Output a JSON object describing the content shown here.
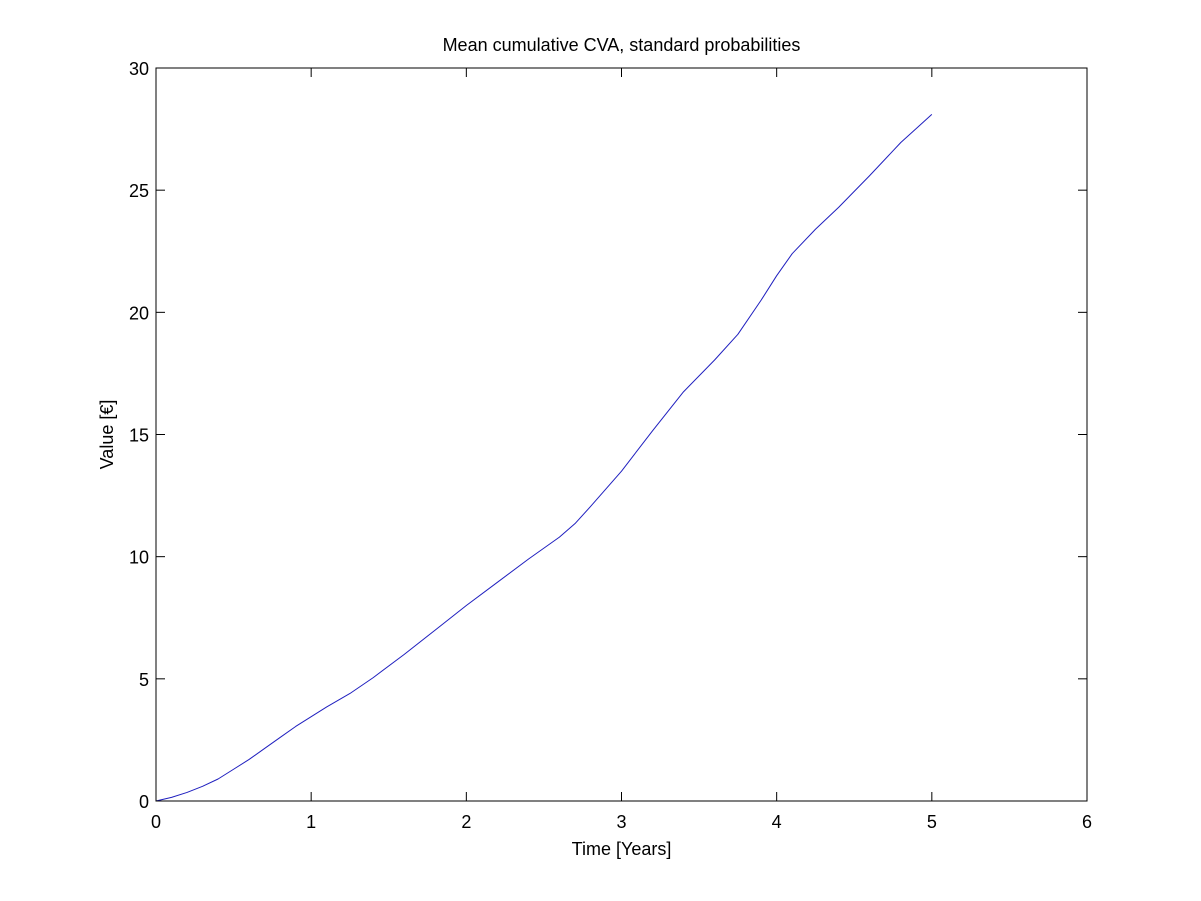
{
  "chart_data": {
    "type": "line",
    "title": "Mean cumulative CVA, standard probabilities",
    "xlabel": "Time [Years]",
    "ylabel": "Value [€]",
    "xlim": [
      0,
      6
    ],
    "ylim": [
      0,
      30
    ],
    "xticks": [
      0,
      1,
      2,
      3,
      4,
      5,
      6
    ],
    "yticks": [
      0,
      5,
      10,
      15,
      20,
      25,
      30
    ],
    "grid": false,
    "legend": "none",
    "colors": {
      "series": "#1f1fbf",
      "axes": "#000000",
      "background": "#ffffff"
    },
    "series": [
      {
        "x": [
          0,
          0.1,
          0.2,
          0.3,
          0.4,
          0.5,
          0.6,
          0.7,
          0.8,
          0.9,
          1.0,
          1.1,
          1.25,
          1.4,
          1.6,
          1.8,
          2.0,
          2.2,
          2.4,
          2.6,
          2.7,
          2.8,
          3.0,
          3.2,
          3.4,
          3.6,
          3.75,
          3.9,
          4.0,
          4.1,
          4.25,
          4.4,
          4.6,
          4.8,
          5.0
        ],
        "y": [
          0,
          0.15,
          0.35,
          0.6,
          0.9,
          1.3,
          1.7,
          2.15,
          2.6,
          3.05,
          3.45,
          3.85,
          4.4,
          5.05,
          6.0,
          7.0,
          8.0,
          8.95,
          9.9,
          10.8,
          11.35,
          12.05,
          13.5,
          15.15,
          16.75,
          18.05,
          19.1,
          20.5,
          21.5,
          22.4,
          23.4,
          24.3,
          25.6,
          26.95,
          28.1
        ]
      }
    ]
  }
}
